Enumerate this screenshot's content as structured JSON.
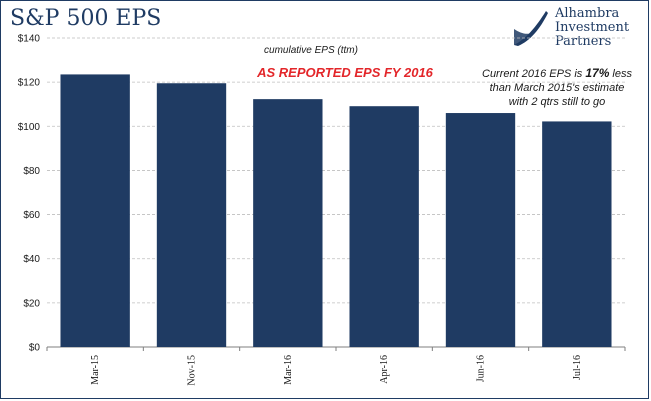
{
  "title": "S&P 500 EPS",
  "logo": {
    "line1": "Alhambra",
    "line2": "Investment",
    "line3": "Partners",
    "icon": "alhambra-swoosh-icon"
  },
  "colors": {
    "bar": "#1f3b63",
    "accent": "#e3262a",
    "grid": "#bfbfbf"
  },
  "chart_data": {
    "type": "bar",
    "subtitle": "cumulative EPS (ttm)",
    "annotation_red": "AS REPORTED EPS FY 2016",
    "annotation_note": {
      "line1_pre": "Current 2016 EPS is ",
      "line1_bold": "17%",
      "line1_post": " less",
      "line2": "than March 2015's estimate",
      "line3": "with 2 qtrs still to go"
    },
    "categories": [
      "Mar-15",
      "Nov-15",
      "Mar-16",
      "Apr-16",
      "Jun-16",
      "Jul-16"
    ],
    "values": [
      123.5,
      119.5,
      112.3,
      109.1,
      106.0,
      102.2
    ],
    "ylim": [
      0,
      140
    ],
    "yticks": [
      0,
      20,
      40,
      60,
      80,
      100,
      120,
      140
    ],
    "ytick_labels": [
      "$0",
      "$20",
      "$40",
      "$60",
      "$80",
      "$100",
      "$120",
      "$140"
    ],
    "grid": true
  }
}
